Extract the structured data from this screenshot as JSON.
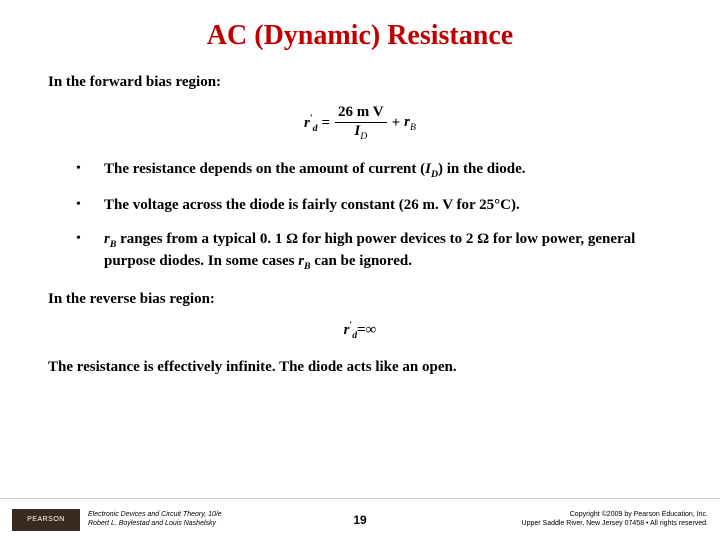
{
  "colors": {
    "title": "#c00000",
    "text": "#000000",
    "logo_bg": "#3b2a1e",
    "rule": "#cccccc",
    "bg": "#ffffff"
  },
  "fonts": {
    "title_size": 28,
    "body_size": 15,
    "eq_size": 15,
    "footer_size": 7,
    "pagenum_size": 12
  },
  "title": "AC (Dynamic) Resistance",
  "section1": {
    "heading": "In the forward bias region:"
  },
  "equation1": {
    "lhs_symbol": "r",
    "lhs_prime": "′",
    "lhs_sub": "d",
    "equals": "=",
    "numerator_value": "26",
    "numerator_unit": "m V",
    "denominator_symbol": "I",
    "denominator_sub": "D",
    "plus": "+",
    "tail_symbol": "r",
    "tail_sub": "B"
  },
  "bullets": [
    {
      "pre": "The resistance depends on the amount of current (",
      "sym": "I",
      "sub": "D",
      "post": ") in the diode."
    },
    {
      "pre": "The voltage across the diode is fairly constant (",
      "mid": "26 m. V for 25°C",
      "post": ")."
    },
    {
      "sym": "r",
      "sub": "B",
      "pre2": " ranges from a typical ",
      "v1": "0. 1 ",
      "ohm1": "Ω",
      "mid2": " for high power devices to ",
      "v2": "2 ",
      "ohm2": "Ω",
      "post2": " for low power, general purpose diodes. In some cases ",
      "sym2": "r",
      "sub2": "B",
      "post3": " can be ignored."
    }
  ],
  "section2": {
    "heading": "In the reverse bias region:"
  },
  "equation2": {
    "lhs_symbol": "r",
    "lhs_prime": "′",
    "lhs_sub": "d",
    "equals": "=",
    "rhs": "∞"
  },
  "conclusion": "The resistance is effectively infinite. The diode acts like an open.",
  "footer": {
    "logo": "PEARSON",
    "book_line1": "Electronic Devices and Circuit Theory, 10/e",
    "book_line2": "Robert L. Boylestad and Louis Nashelsky",
    "page": "19",
    "copy_line1": "Copyright ©2009 by Pearson Education, Inc.",
    "copy_line2": "Upper Saddle River, New Jersey 07458 • All rights reserved."
  }
}
